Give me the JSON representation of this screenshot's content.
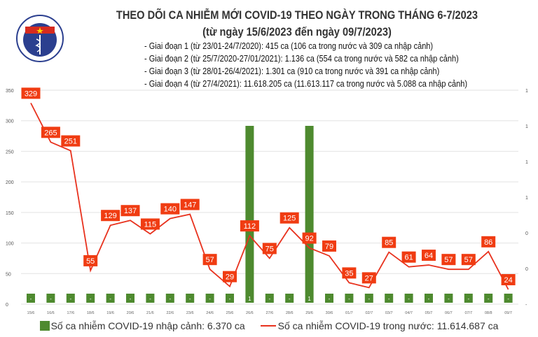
{
  "logo": {
    "top_text": "BỘ Y TẾ",
    "bottom_text": "MINISTRY OF HEALTH"
  },
  "title": "THEO DÕI CA NHIỄM MỚI COVID-19 THEO NGÀY TRONG THÁNG 6-7/2023",
  "subtitle": "(từ ngày 15/6/2023 đến ngày 09/7/2023)",
  "phases": [
    "- Giai đoạn 1 (từ 23/01-24/7/2020): 415 ca (106 ca trong nước và 309 ca nhập cảnh)",
    "- Giai đoạn 2 (từ 25/7/2020-27/01/2021): 1.136 ca (554 ca trong nước và 582 ca nhập cảnh)",
    "- Giai đoạn 3 (từ 28/01-26/4/2021): 1.301 ca (910 ca trong nước và 391 ca nhập cảnh)",
    "- Giai đoạn 4 (từ 27/4/2021): 11.618.205 ca (11.613.117 ca trong nước và 5.088 ca nhập cảnh)"
  ],
  "chart_data": {
    "type": "bar+line",
    "categories": [
      "15/6",
      "16/6",
      "17/6",
      "18/6",
      "19/6",
      "20/6",
      "21/6",
      "22/6",
      "23/6",
      "24/6",
      "25/6",
      "26/6",
      "27/6",
      "28/6",
      "29/6",
      "30/6",
      "01/7",
      "02/7",
      "03/7",
      "04/7",
      "05/7",
      "06/7",
      "07/7",
      "08/8",
      "09/7"
    ],
    "series": [
      {
        "name": "Số ca nhiễm COVID-19 nhập cảnh: 6.370 ca",
        "type": "bar",
        "axis": "right",
        "color": "#4e8a2f",
        "values": [
          0,
          0,
          0,
          0,
          0,
          0,
          0,
          0,
          0,
          0,
          0,
          1,
          0,
          0,
          1,
          0,
          0,
          0,
          0,
          0,
          0,
          0,
          0,
          0,
          0
        ],
        "labels": [
          "-",
          "-",
          "-",
          "-",
          "-",
          "-",
          "-",
          "-",
          "-",
          "-",
          "-",
          "1",
          "-",
          "-",
          "1",
          "-",
          "-",
          "-",
          "-",
          "-",
          "-",
          "-",
          "-",
          "-",
          "-"
        ]
      },
      {
        "name": "Số ca nhiễm COVID-19 trong nước: 11.614.687 ca",
        "type": "line",
        "axis": "left",
        "color": "#e8321e",
        "values": [
          329,
          265,
          251,
          55,
          129,
          137,
          115,
          140,
          147,
          57,
          29,
          112,
          75,
          125,
          92,
          79,
          35,
          27,
          85,
          61,
          64,
          57,
          57,
          86,
          24
        ]
      }
    ],
    "left_axis": {
      "range": [
        0,
        350
      ],
      "ticks": [
        "0",
        "50",
        "100",
        "150",
        "200",
        "250",
        "300",
        "350"
      ]
    },
    "right_axis": {
      "range": [
        0,
        1.2
      ],
      "ticks": [
        "-",
        "0",
        "0",
        "1",
        "1",
        "1",
        "1"
      ]
    },
    "grid": true,
    "legend": "bottom"
  }
}
